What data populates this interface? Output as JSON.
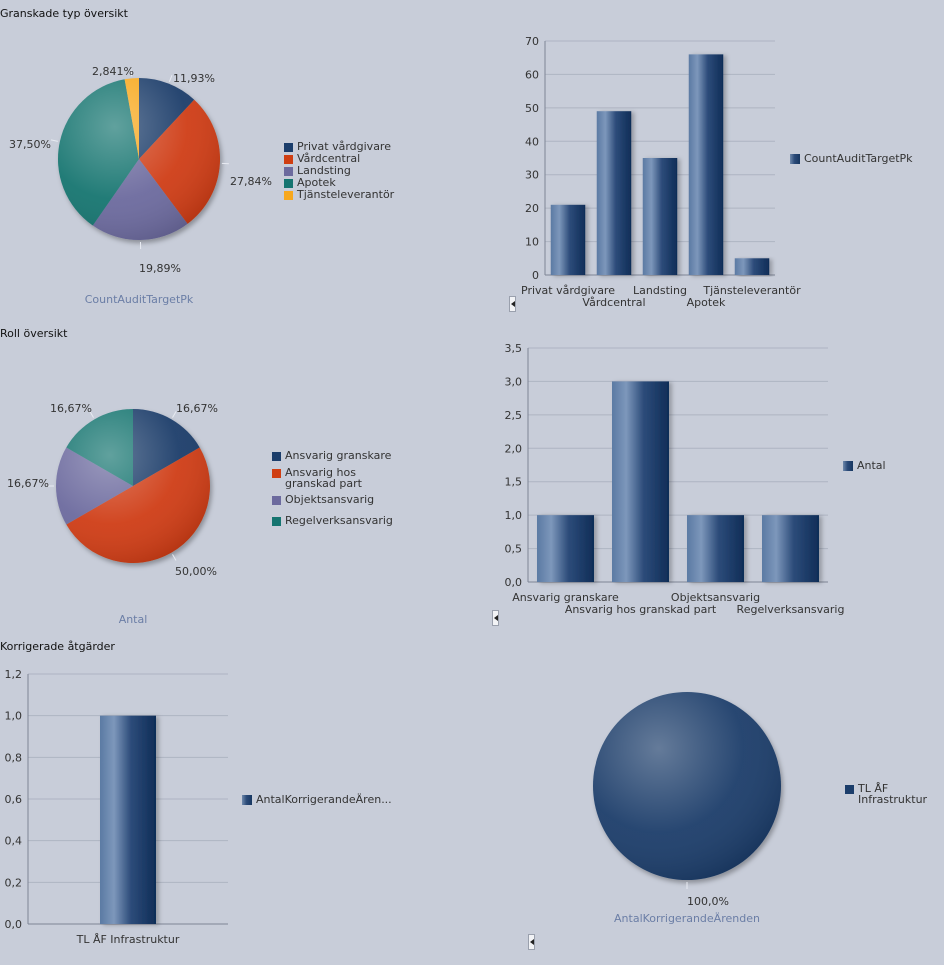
{
  "sections": [
    {
      "title": "Granskade typ översikt"
    },
    {
      "title": "Roll översikt"
    },
    {
      "title": "Korrigerade åtgärder"
    }
  ],
  "chart_data": [
    {
      "type": "pie",
      "caption": "CountAuditTargetPk",
      "slices": [
        {
          "label": "Privat vårdgivare",
          "percent": 11.93,
          "display": "11,93%",
          "color": "#1b3d6b"
        },
        {
          "label": "Vårdcentral",
          "percent": 27.84,
          "display": "27,84%",
          "color": "#cf3e12"
        },
        {
          "label": "Landsting",
          "percent": 19.89,
          "display": "19,89%",
          "color": "#6c6a9e"
        },
        {
          "label": "Apotek",
          "percent": 37.5,
          "display": "37,50%",
          "color": "#157470"
        },
        {
          "label": "Tjänsteleverantör",
          "percent": 2.841,
          "display": "2,841%",
          "color": "#f7a81e"
        }
      ],
      "legend": [
        "Privat vårdgivare",
        "Vårdcentral",
        "Landsting",
        "Apotek",
        "Tjänsteleverantör"
      ]
    },
    {
      "type": "bar",
      "categories": [
        "Privat vårdgivare",
        "Vårdcentral",
        "Landsting",
        "Apotek",
        "Tjänsteleverantör"
      ],
      "series": [
        {
          "name": "CountAuditTargetPk",
          "values": [
            21,
            49,
            35,
            66,
            5
          ]
        }
      ],
      "ylim": [
        0,
        70
      ],
      "yticks": [
        "0",
        "10",
        "20",
        "30",
        "40",
        "50",
        "60",
        "70"
      ],
      "legend_placement": "right",
      "grid": true
    },
    {
      "type": "pie",
      "caption": "Antal",
      "slices": [
        {
          "label": "Ansvarig granskare",
          "percent": 16.67,
          "display": "16,67%",
          "color": "#1b3d6b"
        },
        {
          "label": "Ansvarig hos granskad part",
          "percent": 50.0,
          "display": "50,00%",
          "color": "#cf3e12"
        },
        {
          "label": "Objektsansvarig",
          "percent": 16.67,
          "display": "16,67%",
          "color": "#6c6a9e"
        },
        {
          "label": "Regelverksansvarig",
          "percent": 16.67,
          "display": "16,67%",
          "color": "#157470"
        }
      ],
      "legend": [
        "Ansvarig granskare",
        "Ansvarig hos\ngranskad part",
        "Objektsansvarig",
        "Regelverksansvarig"
      ]
    },
    {
      "type": "bar",
      "categories": [
        "Ansvarig granskare",
        "Ansvarig hos granskad part",
        "Objektsansvarig",
        "Regelverksansvarig"
      ],
      "series": [
        {
          "name": "Antal",
          "values": [
            1,
            3,
            1,
            1
          ]
        }
      ],
      "ylim": [
        0,
        3.5
      ],
      "yticks": [
        "0,0",
        "0,5",
        "1,0",
        "1,5",
        "2,0",
        "2,5",
        "3,0",
        "3,5"
      ],
      "legend_placement": "right",
      "grid": true
    },
    {
      "type": "bar",
      "categories": [
        "TL ÅF Infrastruktur"
      ],
      "series": [
        {
          "name": "AntalKorrigerandeÄren...",
          "values": [
            1
          ]
        }
      ],
      "ylim": [
        0,
        1.2
      ],
      "yticks": [
        "0,0",
        "0,2",
        "0,4",
        "0,6",
        "0,8",
        "1,0",
        "1,2"
      ],
      "legend_placement": "right",
      "grid": true
    },
    {
      "type": "pie",
      "caption": "AntalKorrigerandeÄrenden",
      "slices": [
        {
          "label": "TL ÅF\nInfrastruktur",
          "percent": 100.0,
          "display": "100,0%",
          "color": "#1b3d6b"
        }
      ],
      "legend": [
        "TL ÅF\nInfrastruktur"
      ]
    }
  ]
}
